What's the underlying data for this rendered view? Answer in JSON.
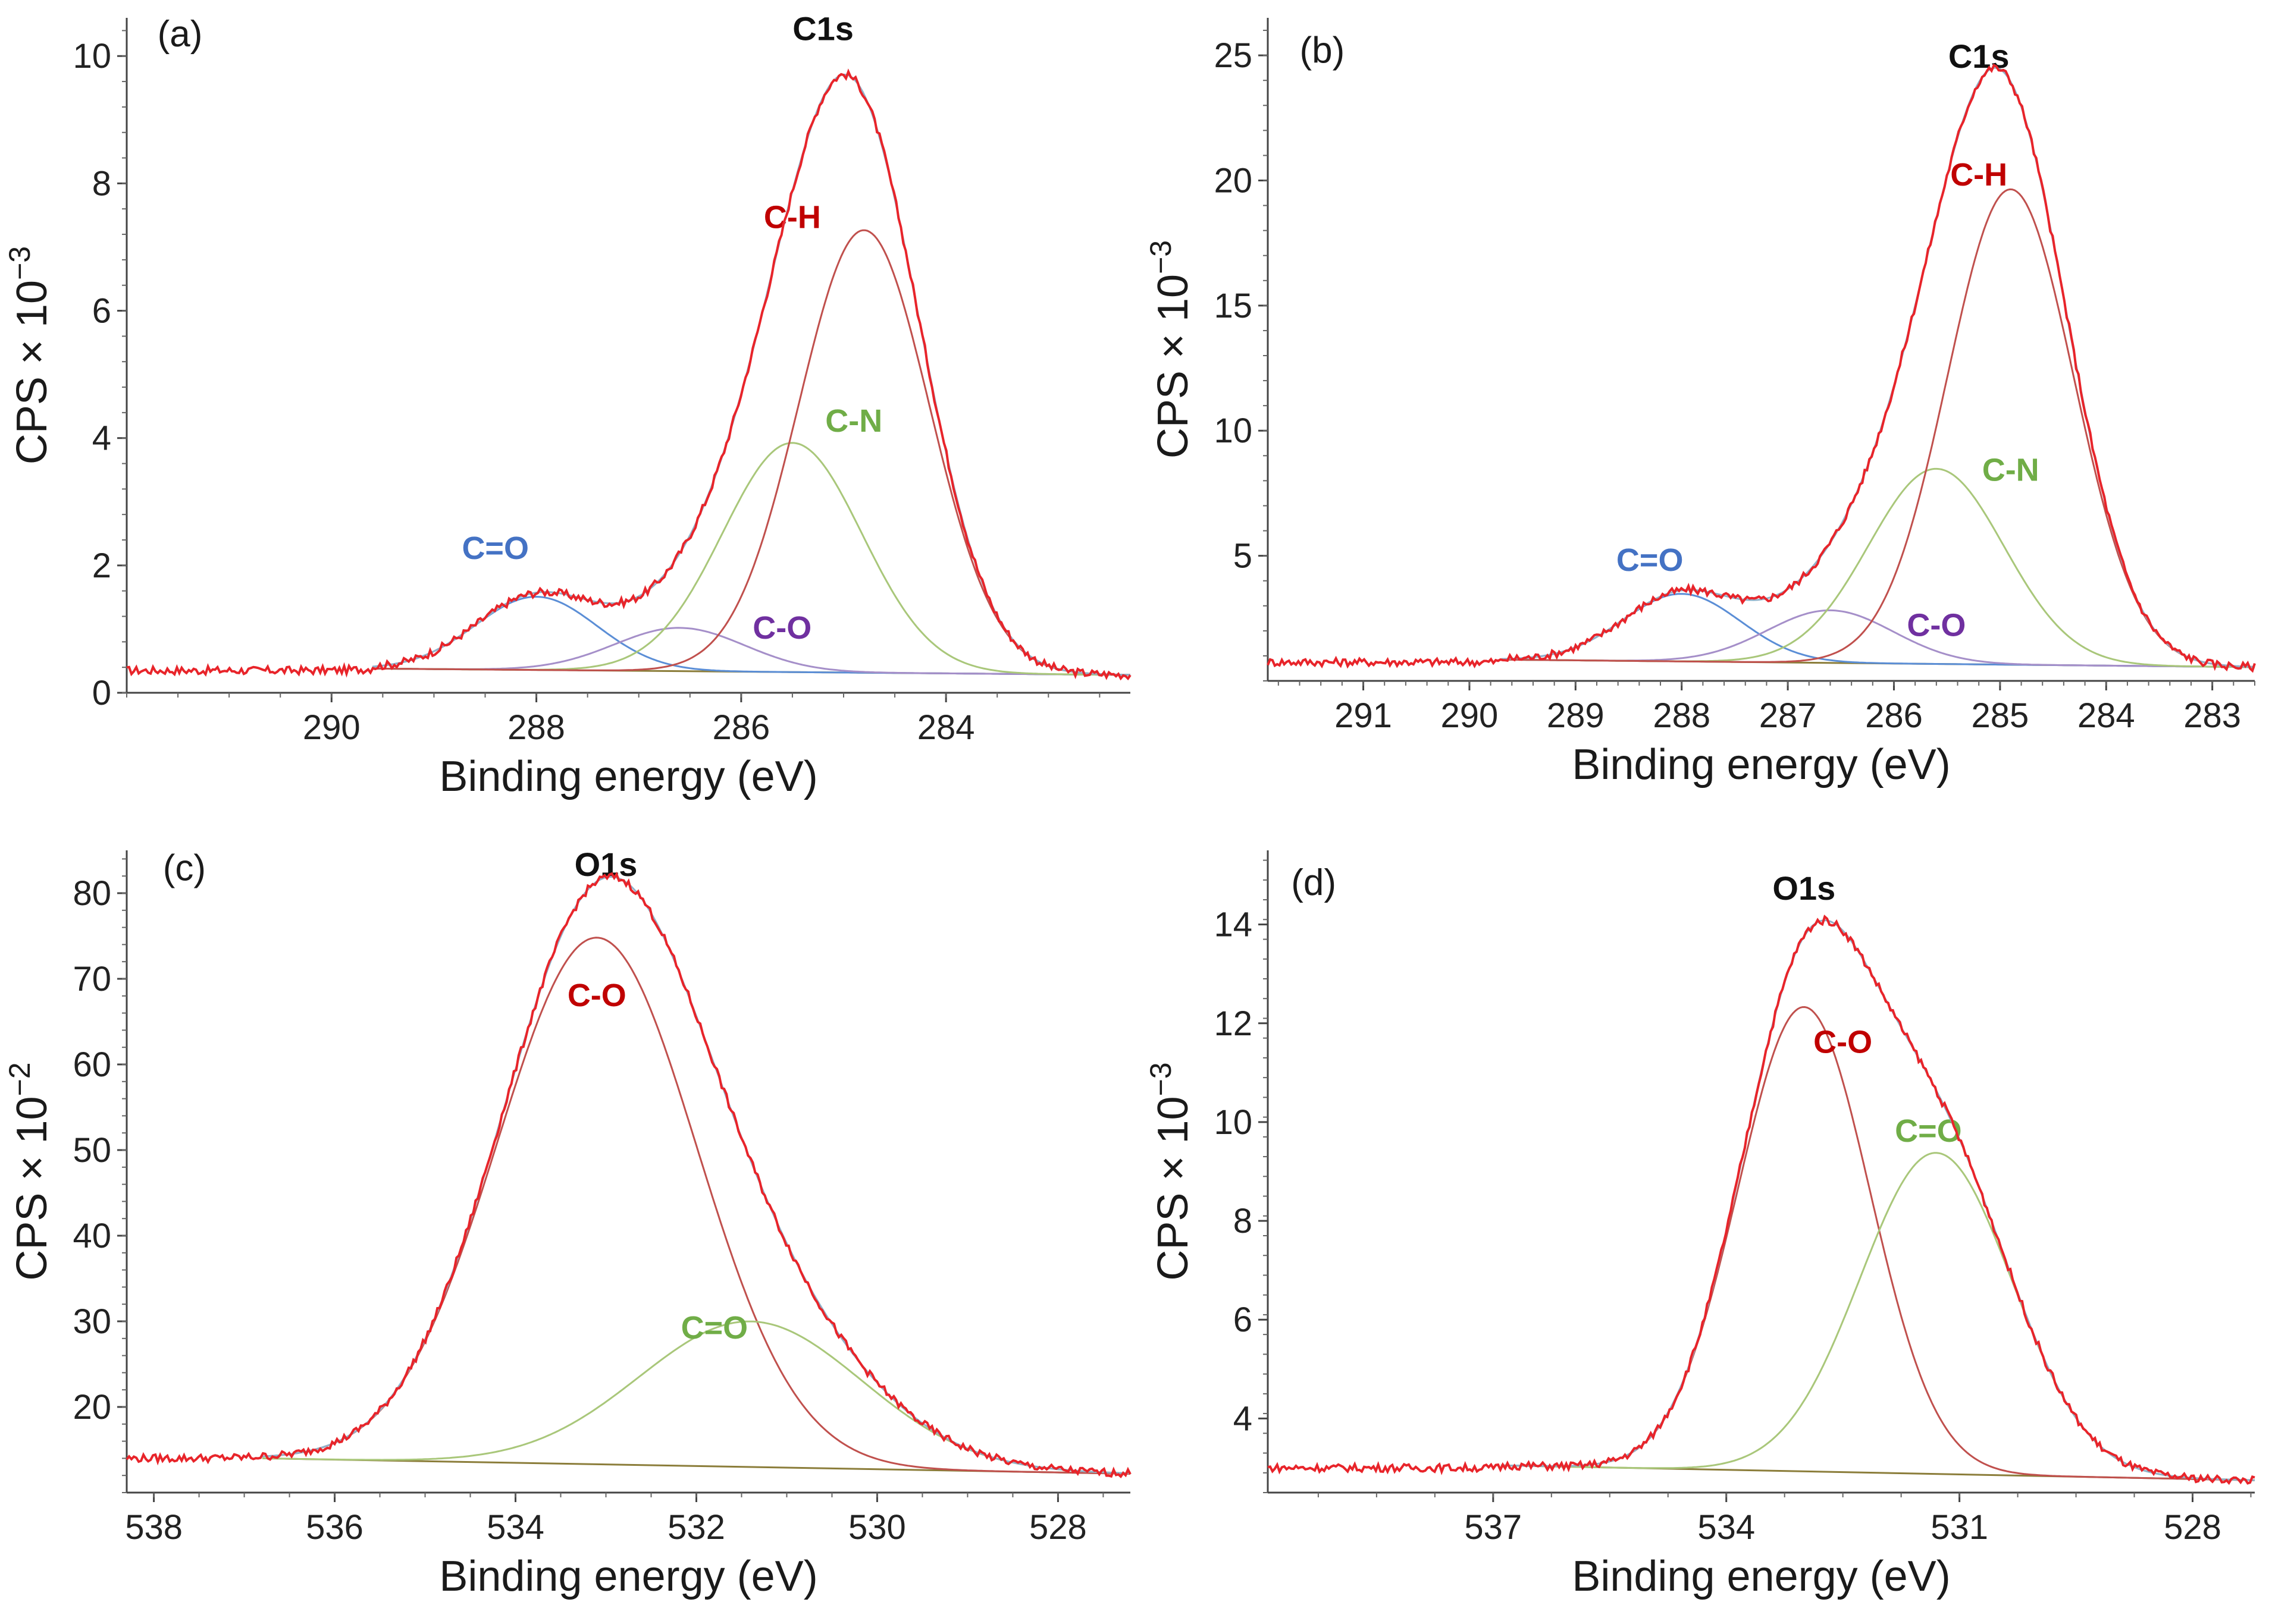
{
  "chart_data": [
    {
      "type": "line",
      "panel_label": "(a)",
      "title": "C1s",
      "xlabel": "Binding energy (eV)",
      "ylabel": "CPS × 10",
      "ylabel_exp": "−3",
      "xlim": [
        292.0,
        282.2
      ],
      "ylim": [
        0,
        10.6
      ],
      "xticks": [
        290,
        288,
        286,
        284
      ],
      "xtick_labels": [
        "290",
        "288",
        "286",
        "284"
      ],
      "yticks": [
        0,
        2,
        4,
        6,
        8,
        10
      ],
      "ytick_labels": [
        "0",
        "2",
        "4",
        "6",
        "8",
        "10"
      ],
      "baseline": {
        "x_start": 289.6,
        "x_end": 282.2,
        "y_start": 0.38,
        "y_end": 0.28
      },
      "raw_offset": 0.35,
      "components": [
        {
          "name": "C=O",
          "center": 288.0,
          "fwhm": 1.4,
          "height": 1.15,
          "color": "#5b8ed6",
          "label_color": "#4472c4",
          "label_x": 288.4,
          "label_y": 2.1
        },
        {
          "name": "C-O",
          "center": 286.6,
          "fwhm": 1.5,
          "height": 0.68,
          "color": "#a58fc9",
          "label_color": "#7030a0",
          "label_x": 285.6,
          "label_y": 0.85
        },
        {
          "name": "C-N",
          "center": 285.5,
          "fwhm": 1.6,
          "height": 3.6,
          "color": "#a9c77a",
          "label_color": "#70ad47",
          "label_x": 284.9,
          "label_y": 4.1
        },
        {
          "name": "C-H",
          "center": 284.8,
          "fwhm": 1.5,
          "height": 6.95,
          "color": "#c0504d",
          "label_color": "#c00000",
          "label_x": 285.5,
          "label_y": 7.3
        }
      ],
      "title_pos": [
        285.2,
        10.25
      ],
      "label_pos": [
        291.7,
        10.15
      ]
    },
    {
      "type": "line",
      "panel_label": "(b)",
      "title": "C1s",
      "xlabel": "Binding energy (eV)",
      "ylabel": "CPS × 10",
      "ylabel_exp": "−3",
      "xlim": [
        291.9,
        282.6
      ],
      "ylim": [
        0,
        26.5
      ],
      "xticks": [
        291,
        290,
        289,
        288,
        287,
        286,
        285,
        284,
        283
      ],
      "xtick_labels": [
        "291",
        "290",
        "289",
        "288",
        "287",
        "286",
        "285",
        "284",
        "283"
      ],
      "yticks": [
        5,
        10,
        15,
        20,
        25
      ],
      "ytick_labels": [
        "5",
        "10",
        "15",
        "20",
        "25"
      ],
      "baseline": {
        "x_start": 289.7,
        "x_end": 282.6,
        "y_start": 0.85,
        "y_end": 0.55
      },
      "raw_offset": 0.75,
      "components": [
        {
          "name": "C=O",
          "center": 288.0,
          "fwhm": 1.3,
          "height": 2.7,
          "color": "#5b8ed6",
          "label_color": "#4472c4",
          "label_x": 288.3,
          "label_y": 4.4
        },
        {
          "name": "C-O",
          "center": 286.6,
          "fwhm": 1.4,
          "height": 2.1,
          "color": "#a58fc9",
          "label_color": "#7030a0",
          "label_x": 285.6,
          "label_y": 1.8
        },
        {
          "name": "C-N",
          "center": 285.6,
          "fwhm": 1.5,
          "height": 7.8,
          "color": "#a9c77a",
          "label_color": "#70ad47",
          "label_x": 284.9,
          "label_y": 8.0
        },
        {
          "name": "C-H",
          "center": 284.9,
          "fwhm": 1.4,
          "height": 19.0,
          "color": "#c0504d",
          "label_color": "#c00000",
          "label_x": 285.2,
          "label_y": 19.8
        }
      ],
      "title_pos": [
        285.2,
        24.5
      ],
      "label_pos": [
        291.6,
        24.7
      ]
    },
    {
      "type": "line",
      "panel_label": "(c)",
      "title": "O1s",
      "xlabel": "Binding energy (eV)",
      "ylabel": "CPS × 10",
      "ylabel_exp": "−2",
      "xlim": [
        538.3,
        527.2
      ],
      "ylim": [
        10.0,
        85.0
      ],
      "xticks": [
        538,
        536,
        534,
        532,
        530,
        528
      ],
      "xtick_labels": [
        "538",
        "536",
        "534",
        "532",
        "530",
        "528"
      ],
      "yticks": [
        20,
        30,
        40,
        50,
        60,
        70,
        80
      ],
      "ytick_labels": [
        "20",
        "30",
        "40",
        "50",
        "60",
        "70",
        "80"
      ],
      "baseline": {
        "x_start": 536.8,
        "x_end": 527.2,
        "y_start": 14.0,
        "y_end": 12.2
      },
      "raw_offset": 14.0,
      "components": [
        {
          "name": "C-O",
          "center": 533.1,
          "fwhm": 2.6,
          "height": 61.5,
          "color": "#c0504d",
          "label_color": "#c00000",
          "label_x": 533.1,
          "label_y": 66.8
        },
        {
          "name": "C=O",
          "center": 531.4,
          "fwhm": 2.9,
          "height": 17.0,
          "color": "#a9c77a",
          "label_color": "#70ad47",
          "label_x": 531.8,
          "label_y": 28.0
        }
      ],
      "title_pos": [
        533.0,
        82.0
      ],
      "label_pos": [
        537.9,
        81.5
      ]
    },
    {
      "type": "line",
      "panel_label": "(d)",
      "title": "O1s",
      "xlabel": "Binding energy (eV)",
      "ylabel": "CPS × 10",
      "ylabel_exp": "−3",
      "xlim": [
        539.9,
        527.2
      ],
      "ylim": [
        2.5,
        15.5
      ],
      "xticks": [
        537,
        534,
        531,
        528
      ],
      "xtick_labels": [
        "537",
        "534",
        "531",
        "528"
      ],
      "yticks": [
        4,
        6,
        8,
        10,
        12,
        14
      ],
      "ytick_labels": [
        "4",
        "6",
        "8",
        "10",
        "12",
        "14"
      ],
      "baseline": {
        "x_start": 536.9,
        "x_end": 527.2,
        "y_start": 3.05,
        "y_end": 2.75
      },
      "raw_offset": 3.0,
      "components": [
        {
          "name": "C-O",
          "center": 533.0,
          "fwhm": 2.0,
          "height": 9.4,
          "color": "#c0504d",
          "label_color": "#c00000",
          "label_x": 532.5,
          "label_y": 11.4
        },
        {
          "name": "C=O",
          "center": 531.3,
          "fwhm": 2.3,
          "height": 6.5,
          "color": "#a9c77a",
          "label_color": "#70ad47",
          "label_x": 531.4,
          "label_y": 9.6
        }
      ],
      "title_pos": [
        533.0,
        14.5
      ],
      "label_pos": [
        539.6,
        14.6
      ]
    }
  ]
}
